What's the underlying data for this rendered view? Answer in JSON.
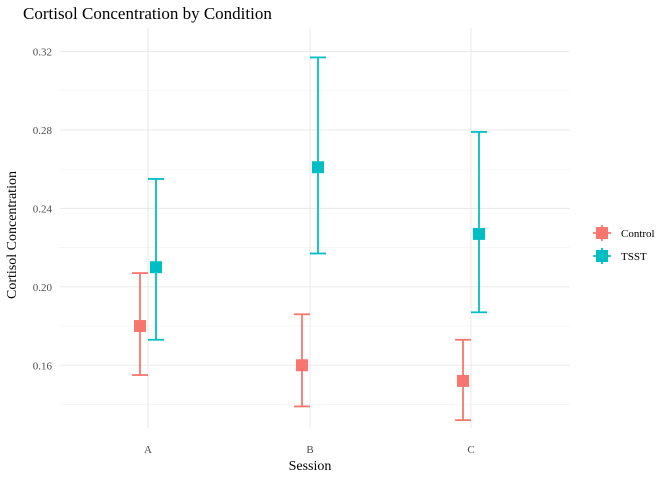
{
  "chart_data": {
    "type": "scatter",
    "title": "Cortisol Concentration by Condition",
    "xlabel": "Session",
    "ylabel": "Cortisol Concentration",
    "categories": [
      "A",
      "B",
      "C"
    ],
    "ylim": [
      0.128,
      0.332
    ],
    "yticks": [
      0.16,
      0.2,
      0.24,
      0.28,
      0.32
    ],
    "ytick_labels": [
      "0.16",
      "0.20",
      "0.24",
      "0.28",
      "0.32"
    ],
    "grid": true,
    "legend_position": "right",
    "series": [
      {
        "name": "Control",
        "color": "#F8766D",
        "values": [
          0.18,
          0.16,
          0.152
        ],
        "lower": [
          0.155,
          0.139,
          0.132
        ],
        "upper": [
          0.207,
          0.186,
          0.173
        ]
      },
      {
        "name": "TSST",
        "color": "#00BFC4",
        "values": [
          0.21,
          0.261,
          0.227
        ],
        "lower": [
          0.173,
          0.217,
          0.187
        ],
        "upper": [
          0.255,
          0.317,
          0.279
        ]
      }
    ]
  }
}
